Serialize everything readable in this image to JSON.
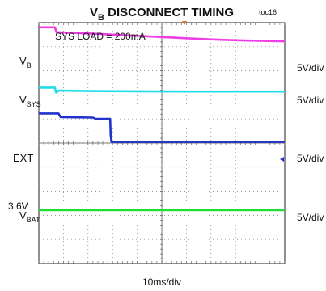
{
  "chart_data": {
    "type": "line",
    "title": {
      "main": "V",
      "sub": "B",
      "rest": " DISCONNECT TIMING"
    },
    "figure_id": "toc16",
    "annotation": "SYS LOAD = 200mA",
    "xlabel": "10ms/div",
    "x_range_div": [
      0,
      10
    ],
    "grid": true,
    "channels": [
      {
        "name": "VB",
        "main": "V",
        "sub": "B",
        "scale": "5V/div",
        "color": "#ee3ee6",
        "points": [
          [
            0,
            1.55
          ],
          [
            0.65,
            1.55
          ],
          [
            0.72,
            1.35
          ],
          [
            1.5,
            1.32
          ],
          [
            2.5,
            1.28
          ],
          [
            3.5,
            1.22
          ],
          [
            4.5,
            1.17
          ],
          [
            5.5,
            1.12
          ],
          [
            6.5,
            1.07
          ],
          [
            7.5,
            1.03
          ],
          [
            8.5,
            1.0
          ],
          [
            10,
            0.97
          ]
        ]
      },
      {
        "name": "VSYS",
        "main": "V",
        "sub": "SYS",
        "scale": "5V/div",
        "color": "#22dde8",
        "points": [
          [
            0,
            0.12
          ],
          [
            0.65,
            0.12
          ],
          [
            0.7,
            -0.08
          ],
          [
            0.82,
            0.0
          ],
          [
            2,
            -0.02
          ],
          [
            4,
            -0.03
          ],
          [
            6,
            -0.04
          ],
          [
            8,
            -0.04
          ],
          [
            10,
            -0.04
          ]
        ]
      },
      {
        "name": "EXT",
        "main": "EXT",
        "sub": "",
        "scale": "5V/div",
        "color": "#2233cc",
        "points": [
          [
            0,
            2.2
          ],
          [
            0.8,
            2.2
          ],
          [
            0.88,
            2.05
          ],
          [
            2.2,
            2.03
          ],
          [
            2.3,
            1.98
          ],
          [
            2.9,
            1.98
          ],
          [
            2.92,
            1.3
          ],
          [
            2.95,
            1.02
          ],
          [
            10,
            1.02
          ]
        ]
      },
      {
        "name": "VBAT",
        "main": "V",
        "sub": "BAT",
        "scale": "5V/div",
        "color": "#22dd33",
        "level_label": "3.6V",
        "points": [
          [
            0,
            0.0
          ],
          [
            10,
            0.0
          ]
        ]
      }
    ]
  }
}
